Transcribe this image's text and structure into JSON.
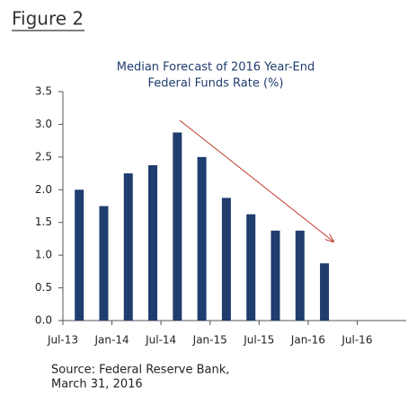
{
  "figure": "Figure 2",
  "chart_data": {
    "type": "bar",
    "title": [
      "Median Forecast of 2016 Year-End",
      "Federal Funds Rate (%)"
    ],
    "x": [
      "2013-09",
      "2013-12",
      "2014-03",
      "2014-06",
      "2014-09",
      "2014-12",
      "2015-03",
      "2015-06",
      "2015-09",
      "2015-12",
      "2016-03"
    ],
    "values": [
      2.0,
      1.75,
      2.25,
      2.375,
      2.875,
      2.5,
      1.875,
      1.625,
      1.375,
      1.375,
      0.875
    ],
    "color": "#1f3d6e",
    "xlim": [
      "2013-07",
      "2017-01"
    ],
    "xticks": [
      {
        "value": "2013-07",
        "label": "Jul-13"
      },
      {
        "value": "2014-01",
        "label": "Jan-14"
      },
      {
        "value": "2014-07",
        "label": "Jul-14"
      },
      {
        "value": "2015-01",
        "label": "Jan-15"
      },
      {
        "value": "2015-07",
        "label": "Jul-15"
      },
      {
        "value": "2016-01",
        "label": "Jan-16"
      },
      {
        "value": "2016-07",
        "label": "Jul-16"
      }
    ],
    "ylim": [
      0,
      3.5
    ],
    "yticks": [
      {
        "value": 0,
        "label": "0.0"
      },
      0.5,
      {
        "value": 1,
        "label": "1.0"
      },
      1.5,
      {
        "value": 2,
        "label": "2.0"
      },
      2.5,
      {
        "value": 3,
        "label": "3.0"
      },
      3.5
    ]
  },
  "source": [
    "Source: Federal Reserve Bank,",
    "March 31, 2016"
  ]
}
